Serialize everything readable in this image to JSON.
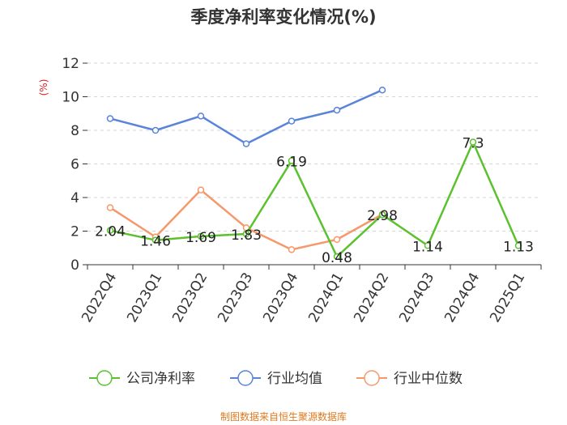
{
  "chart_data": {
    "type": "line",
    "title": "季度净利率变化情况(%)",
    "ylabel": "(%)",
    "ylim": [
      0,
      12
    ],
    "yticks": [
      0,
      2,
      4,
      6,
      8,
      10,
      12
    ],
    "categories": [
      "2022Q4",
      "2023Q1",
      "2023Q2",
      "2023Q3",
      "2023Q4",
      "2024Q1",
      "2024Q2",
      "2024Q3",
      "2024Q4",
      "2025Q1"
    ],
    "grid": "horizontal dashed",
    "legend_position": "bottom",
    "series": [
      {
        "name": "公司净利率",
        "color": "#5cc12f",
        "values": [
          2.04,
          1.46,
          1.69,
          1.83,
          6.19,
          0.48,
          2.98,
          1.14,
          7.3,
          1.13
        ],
        "labels": [
          "2.04",
          "1.46",
          "1.69",
          "1.83",
          "6.19",
          "0.48",
          "2.98",
          "1.14",
          "7.3",
          "1.13"
        ]
      },
      {
        "name": "行业均值",
        "color": "#5a84d8",
        "values": [
          8.7,
          8.0,
          8.85,
          7.2,
          8.55,
          9.2,
          10.4,
          null,
          null,
          null
        ]
      },
      {
        "name": "行业中位数",
        "color": "#f5996a",
        "values": [
          3.4,
          1.65,
          4.45,
          2.2,
          0.9,
          1.5,
          3.0,
          null,
          null,
          null
        ]
      }
    ],
    "source": "制图数据来自恒生聚源数据库"
  }
}
